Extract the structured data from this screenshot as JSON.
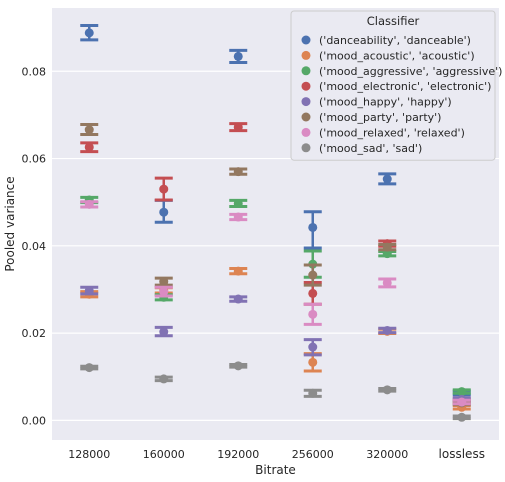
{
  "chart_data": {
    "type": "scatter",
    "xlabel": "Bitrate",
    "ylabel": "Pooled variance",
    "categories": [
      "128000",
      "160000",
      "192000",
      "256000",
      "320000",
      "lossless"
    ],
    "ylim": [
      -0.0045,
      0.0945
    ],
    "yticks": [
      "0.00",
      "0.02",
      "0.04",
      "0.06",
      "0.08"
    ],
    "ytick_values": [
      0.0,
      0.02,
      0.04,
      0.06,
      0.08
    ],
    "grid": true,
    "legend": {
      "title": "Classifier",
      "placement": "top-right"
    },
    "series": [
      {
        "name": "('danceability', 'danceable')",
        "color": "#4c72b0",
        "values": [
          0.0888,
          0.0477,
          0.0834,
          0.0442,
          0.0553,
          0.0063
        ],
        "err_low": [
          0.0872,
          0.0454,
          0.082,
          0.0395,
          0.0542,
          0.0059
        ],
        "err_high": [
          0.0905,
          0.0504,
          0.0848,
          0.0478,
          0.0565,
          0.0067
        ]
      },
      {
        "name": "('mood_acoustic', 'acoustic')",
        "color": "#dd8452",
        "values": [
          0.0289,
          0.0298,
          0.0342,
          0.0133,
          0.0204,
          0.003
        ],
        "err_low": [
          0.0283,
          0.0292,
          0.0336,
          0.0113,
          0.0199,
          0.0026
        ],
        "err_high": [
          0.0295,
          0.0304,
          0.0348,
          0.0153,
          0.0209,
          0.0034
        ]
      },
      {
        "name": "('mood_aggressive', 'aggressive')",
        "color": "#55a868",
        "values": [
          0.0505,
          0.0282,
          0.0497,
          0.0358,
          0.0382,
          0.0066
        ],
        "err_low": [
          0.0499,
          0.0276,
          0.049,
          0.0328,
          0.0377,
          0.0062
        ],
        "err_high": [
          0.0511,
          0.0288,
          0.0504,
          0.0388,
          0.0387,
          0.007
        ]
      },
      {
        "name": "('mood_electronic', 'electronic')",
        "color": "#c44e52",
        "values": [
          0.0626,
          0.053,
          0.0672,
          0.0291,
          0.0405,
          0.0045
        ],
        "err_low": [
          0.0616,
          0.0505,
          0.0664,
          0.0266,
          0.0399,
          0.0041
        ],
        "err_high": [
          0.0636,
          0.0555,
          0.068,
          0.0316,
          0.0411,
          0.0049
        ]
      },
      {
        "name": "('mood_happy', 'happy')",
        "color": "#8172b3",
        "values": [
          0.0297,
          0.0203,
          0.0278,
          0.0168,
          0.0206,
          0.0048
        ],
        "err_low": [
          0.029,
          0.0194,
          0.0273,
          0.015,
          0.0201,
          0.0044
        ],
        "err_high": [
          0.0305,
          0.0213,
          0.0283,
          0.0185,
          0.0211,
          0.0052
        ]
      },
      {
        "name": "('mood_party', 'party')",
        "color": "#937860",
        "values": [
          0.0666,
          0.0318,
          0.057,
          0.0333,
          0.0397,
          0.004
        ],
        "err_low": [
          0.0655,
          0.031,
          0.0564,
          0.031,
          0.0391,
          0.0036
        ],
        "err_high": [
          0.0678,
          0.0326,
          0.0576,
          0.0356,
          0.0403,
          0.0044
        ]
      },
      {
        "name": "('mood_relaxed', 'relaxed')",
        "color": "#da8bc3",
        "values": [
          0.0495,
          0.0295,
          0.0466,
          0.0243,
          0.0315,
          0.0042
        ],
        "err_low": [
          0.0489,
          0.0285,
          0.046,
          0.022,
          0.0306,
          0.0038
        ],
        "err_high": [
          0.0501,
          0.0305,
          0.0472,
          0.0266,
          0.0324,
          0.0046
        ]
      },
      {
        "name": "('mood_sad', 'sad')",
        "color": "#8c8c8c",
        "values": [
          0.0121,
          0.0095,
          0.0125,
          0.0062,
          0.007,
          0.0007
        ],
        "err_low": [
          0.0118,
          0.0091,
          0.0122,
          0.0055,
          0.0067,
          0.0004
        ],
        "err_high": [
          0.0124,
          0.0099,
          0.0128,
          0.0069,
          0.0073,
          0.001
        ]
      }
    ]
  }
}
